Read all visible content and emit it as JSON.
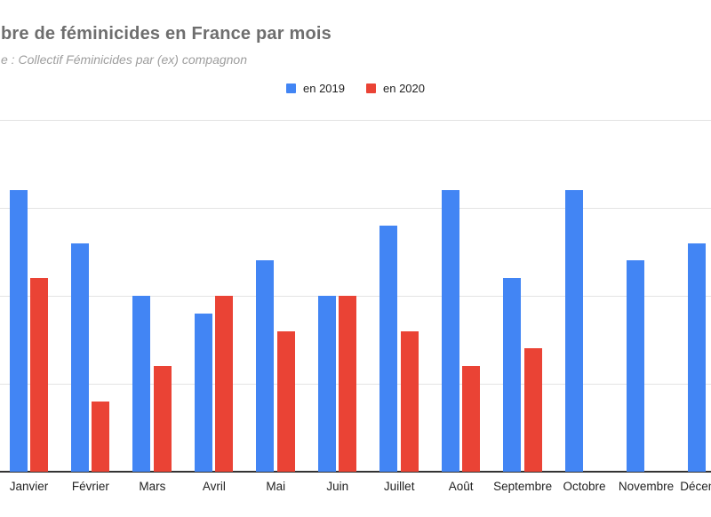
{
  "title": "bre de féminicides en France par mois",
  "subtitle": "e : Collectif Féminicides par (ex) compagnon",
  "legend": [
    {
      "label": "en 2019",
      "color": "#4285F4"
    },
    {
      "label": "en 2020",
      "color": "#EA4335"
    }
  ],
  "chart_data": {
    "type": "bar",
    "title": "bre de féminicides en France par mois",
    "subtitle": "e : Collectif Féminicides par (ex) compagnon",
    "categories": [
      "Janvier",
      "Février",
      "Mars",
      "Avril",
      "Mai",
      "Juin",
      "Juillet",
      "Août",
      "Septembre",
      "Octobre",
      "Novembre",
      "Décembre"
    ],
    "series": [
      {
        "name": "en 2019",
        "color": "#4285F4",
        "values": [
          16,
          13,
          10,
          9,
          12,
          10,
          14,
          16,
          11,
          16,
          12,
          13
        ]
      },
      {
        "name": "en 2020",
        "color": "#EA4335",
        "values": [
          11,
          4,
          6,
          10,
          8,
          10,
          8,
          6,
          7,
          null,
          null,
          null
        ]
      }
    ],
    "xlabel": "",
    "ylabel": "",
    "ylim": [
      0,
      20
    ],
    "gridline_values": [
      0,
      5,
      10,
      15,
      20
    ],
    "grid": true,
    "legend_position": "top",
    "y_axis_labels_visible": false
  }
}
